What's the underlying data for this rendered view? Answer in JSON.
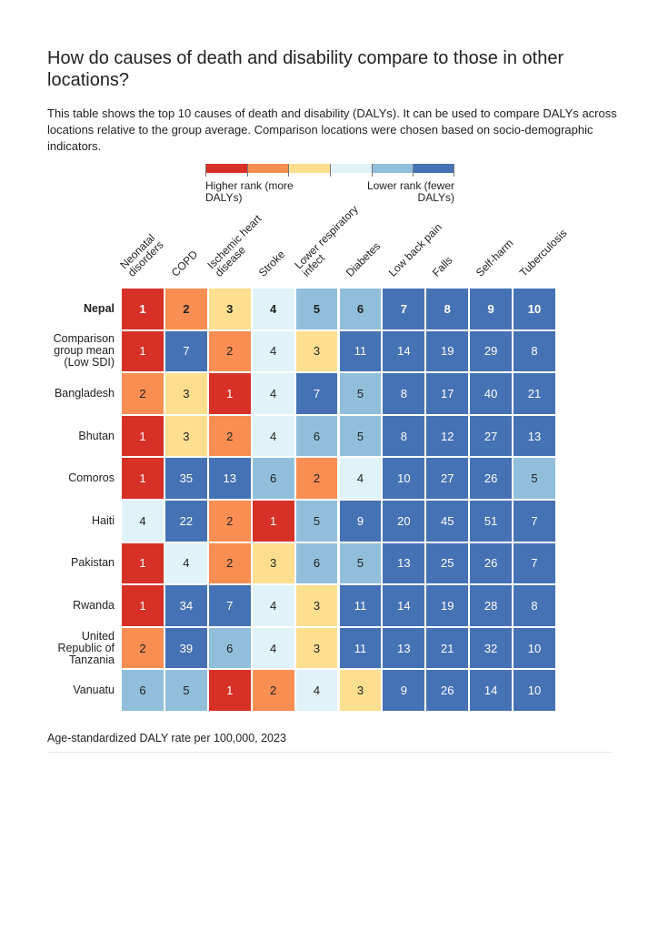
{
  "title": "How do causes of death and disability compare to those in other locations?",
  "description": "This table shows the top 10 causes of death and disability (DALYs). It can be used to compare DALYs across locations relative to the group average. Comparison locations were chosen based on socio-demographic indicators.",
  "legend": {
    "higher_label": "Higher rank (more DALYs)",
    "lower_label": "Lower rank (fewer DALYs)",
    "colors": [
      "#d73027",
      "#f98e52",
      "#fedf8f",
      "#e0f3f8",
      "#91bfdb",
      "#4572b4"
    ]
  },
  "footer": "Age-standardized DALY rate per 100,000, 2023",
  "chart_data": {
    "type": "heatmap",
    "columns": [
      "Neonatal\ndisorders",
      "COPD",
      "Ischemic heart\ndisease",
      "Stroke",
      "Lower respiratory\ninfect",
      "Diabetes",
      "Low back pain",
      "Falls",
      "Self-harm",
      "Tuberculosis"
    ],
    "rows": [
      {
        "label": "Nepal",
        "values": [
          1,
          2,
          3,
          4,
          5,
          6,
          7,
          8,
          9,
          10
        ]
      },
      {
        "label": "Comparison\ngroup mean\n(Low SDI)",
        "values": [
          1,
          7,
          2,
          4,
          3,
          11,
          14,
          19,
          29,
          8
        ]
      },
      {
        "label": "Bangladesh",
        "values": [
          2,
          3,
          1,
          4,
          7,
          5,
          8,
          17,
          40,
          21
        ]
      },
      {
        "label": "Bhutan",
        "values": [
          1,
          3,
          2,
          4,
          6,
          5,
          8,
          12,
          27,
          13
        ]
      },
      {
        "label": "Comoros",
        "values": [
          1,
          35,
          13,
          6,
          2,
          4,
          10,
          27,
          26,
          5
        ]
      },
      {
        "label": "Haiti",
        "values": [
          4,
          22,
          2,
          1,
          5,
          9,
          20,
          45,
          51,
          7
        ]
      },
      {
        "label": "Pakistan",
        "values": [
          1,
          4,
          2,
          3,
          6,
          5,
          13,
          25,
          26,
          7
        ]
      },
      {
        "label": "Rwanda",
        "values": [
          1,
          34,
          7,
          4,
          3,
          11,
          14,
          19,
          28,
          8
        ]
      },
      {
        "label": "United\nRepublic of\nTanzania",
        "values": [
          2,
          39,
          6,
          4,
          3,
          11,
          13,
          21,
          32,
          10
        ]
      },
      {
        "label": "Vanuatu",
        "values": [
          6,
          5,
          1,
          2,
          4,
          3,
          9,
          26,
          14,
          10
        ]
      }
    ]
  }
}
